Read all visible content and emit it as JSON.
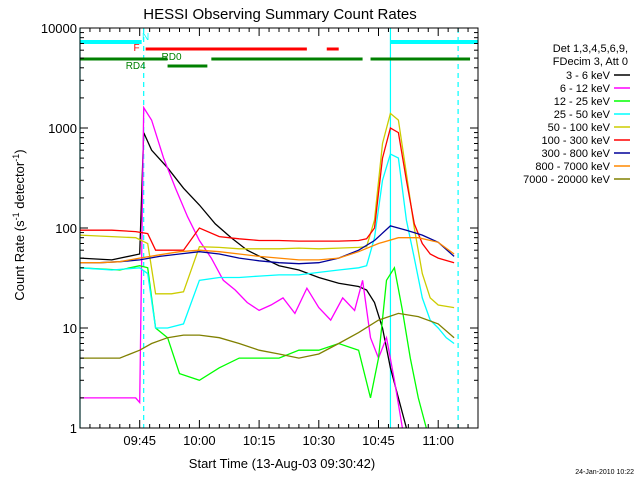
{
  "title": "HESSI Observing Summary Count Rates",
  "date_stamp": "24-Jan-2010 10:22",
  "chart_data": {
    "type": "line",
    "title": "HESSI Observing Summary Count Rates",
    "xlabel": "Start Time (13-Aug-03 09:30:42)",
    "ylabel_prefix": "Count Rate (s",
    "ylabel_sup1": "-1",
    "ylabel_mid": " detector",
    "ylabel_sup2": "-1",
    "ylabel_suffix": ")",
    "y_scale": "log",
    "ylim": [
      1,
      10000
    ],
    "xlim_minutes": [
      0,
      100
    ],
    "x_ticks": [
      {
        "t": 15,
        "label": "09:45"
      },
      {
        "t": 30,
        "label": "10:00"
      },
      {
        "t": 45,
        "label": "10:15"
      },
      {
        "t": 60,
        "label": "10:30"
      },
      {
        "t": 75,
        "label": "10:45"
      },
      {
        "t": 90,
        "label": "11:00"
      }
    ],
    "y_ticks": [
      {
        "v": 1,
        "label": "1"
      },
      {
        "v": 10,
        "label": "10"
      },
      {
        "v": 100,
        "label": "100"
      },
      {
        "v": 1000,
        "label": "1000"
      },
      {
        "v": 10000,
        "label": "10000"
      }
    ],
    "legend": {
      "header1": "Det 1,3,4,5,6,9,",
      "header2": "FDecim 3, Att 0",
      "position": "right"
    },
    "series": [
      {
        "name": "3 - 6 keV",
        "color": "#000000",
        "points": [
          [
            0,
            50
          ],
          [
            8,
            48
          ],
          [
            15,
            55
          ],
          [
            16,
            900
          ],
          [
            18,
            600
          ],
          [
            22,
            400
          ],
          [
            26,
            250
          ],
          [
            30,
            170
          ],
          [
            34,
            110
          ],
          [
            38,
            80
          ],
          [
            42,
            60
          ],
          [
            46,
            50
          ],
          [
            50,
            42
          ],
          [
            55,
            38
          ],
          [
            60,
            32
          ],
          [
            65,
            28
          ],
          [
            70,
            26
          ],
          [
            72,
            24
          ],
          [
            74,
            18
          ],
          [
            76,
            10
          ],
          [
            78,
            4
          ],
          [
            80,
            2
          ],
          [
            82,
            1
          ]
        ]
      },
      {
        "name": "6 - 12 keV",
        "color": "#ff00ff",
        "points": [
          [
            0,
            2
          ],
          [
            10,
            2
          ],
          [
            14,
            2
          ],
          [
            15,
            1.8
          ],
          [
            16,
            1600
          ],
          [
            18,
            1200
          ],
          [
            21,
            500
          ],
          [
            24,
            250
          ],
          [
            27,
            130
          ],
          [
            30,
            75
          ],
          [
            33,
            50
          ],
          [
            36,
            30
          ],
          [
            39,
            24
          ],
          [
            42,
            18
          ],
          [
            45,
            15
          ],
          [
            48,
            17
          ],
          [
            51,
            20
          ],
          [
            54,
            14
          ],
          [
            57,
            25
          ],
          [
            60,
            16
          ],
          [
            63,
            12
          ],
          [
            66,
            20
          ],
          [
            69,
            15
          ],
          [
            71,
            30
          ],
          [
            73,
            8
          ],
          [
            75,
            5
          ],
          [
            77,
            8
          ],
          [
            79,
            3
          ],
          [
            81,
            1
          ]
        ]
      },
      {
        "name": "12 - 25 keV",
        "color": "#00ff00",
        "points": [
          [
            0,
            40
          ],
          [
            10,
            38
          ],
          [
            15,
            42
          ],
          [
            17,
            40
          ],
          [
            19,
            10
          ],
          [
            22,
            8
          ],
          [
            25,
            3.5
          ],
          [
            30,
            3
          ],
          [
            35,
            4
          ],
          [
            40,
            5
          ],
          [
            45,
            5
          ],
          [
            50,
            5
          ],
          [
            55,
            6
          ],
          [
            60,
            6
          ],
          [
            65,
            7
          ],
          [
            70,
            6
          ],
          [
            73,
            2
          ],
          [
            75,
            5
          ],
          [
            77,
            30
          ],
          [
            79,
            40
          ],
          [
            81,
            15
          ],
          [
            83,
            5
          ],
          [
            85,
            2
          ],
          [
            87,
            1
          ]
        ]
      },
      {
        "name": "25 - 50 keV",
        "color": "#00ffff",
        "points": [
          [
            0,
            40
          ],
          [
            8,
            38
          ],
          [
            15,
            40
          ],
          [
            17,
            35
          ],
          [
            19,
            10
          ],
          [
            22,
            10
          ],
          [
            26,
            11
          ],
          [
            30,
            30
          ],
          [
            35,
            32
          ],
          [
            40,
            32
          ],
          [
            45,
            33
          ],
          [
            50,
            34
          ],
          [
            55,
            34
          ],
          [
            60,
            36
          ],
          [
            65,
            38
          ],
          [
            70,
            40
          ],
          [
            72,
            42
          ],
          [
            74,
            80
          ],
          [
            76,
            300
          ],
          [
            78,
            550
          ],
          [
            80,
            500
          ],
          [
            82,
            120
          ],
          [
            84,
            50
          ],
          [
            86,
            20
          ],
          [
            88,
            12
          ],
          [
            90,
            10
          ],
          [
            92,
            8
          ],
          [
            94,
            7
          ]
        ]
      },
      {
        "name": "50 - 100 keV",
        "color": "#cccc00",
        "points": [
          [
            0,
            85
          ],
          [
            8,
            82
          ],
          [
            14,
            80
          ],
          [
            17,
            70
          ],
          [
            19,
            22
          ],
          [
            23,
            22
          ],
          [
            26,
            23
          ],
          [
            30,
            65
          ],
          [
            35,
            64
          ],
          [
            40,
            62
          ],
          [
            45,
            62
          ],
          [
            50,
            62
          ],
          [
            55,
            63
          ],
          [
            60,
            62
          ],
          [
            65,
            63
          ],
          [
            70,
            64
          ],
          [
            72,
            65
          ],
          [
            74,
            120
          ],
          [
            76,
            700
          ],
          [
            78,
            1400
          ],
          [
            80,
            1200
          ],
          [
            82,
            350
          ],
          [
            84,
            100
          ],
          [
            86,
            35
          ],
          [
            88,
            20
          ],
          [
            90,
            17
          ],
          [
            94,
            16
          ]
        ]
      },
      {
        "name": "100 - 300 keV",
        "color": "#ff0000",
        "points": [
          [
            0,
            95
          ],
          [
            8,
            95
          ],
          [
            14,
            92
          ],
          [
            17,
            88
          ],
          [
            19,
            60
          ],
          [
            23,
            60
          ],
          [
            26,
            60
          ],
          [
            30,
            100
          ],
          [
            35,
            82
          ],
          [
            40,
            78
          ],
          [
            45,
            75
          ],
          [
            50,
            75
          ],
          [
            55,
            74
          ],
          [
            60,
            74
          ],
          [
            65,
            74
          ],
          [
            70,
            75
          ],
          [
            72,
            78
          ],
          [
            74,
            100
          ],
          [
            76,
            500
          ],
          [
            78,
            1000
          ],
          [
            80,
            900
          ],
          [
            82,
            300
          ],
          [
            84,
            110
          ],
          [
            86,
            70
          ],
          [
            88,
            55
          ],
          [
            90,
            50
          ],
          [
            94,
            45
          ]
        ]
      },
      {
        "name": "300 - 800 keV",
        "color": "#000099",
        "points": [
          [
            0,
            45
          ],
          [
            5,
            45
          ],
          [
            10,
            46
          ],
          [
            15,
            48
          ],
          [
            20,
            52
          ],
          [
            25,
            55
          ],
          [
            30,
            58
          ],
          [
            35,
            55
          ],
          [
            40,
            50
          ],
          [
            45,
            47
          ],
          [
            50,
            45
          ],
          [
            55,
            44
          ],
          [
            60,
            45
          ],
          [
            65,
            50
          ],
          [
            70,
            60
          ],
          [
            74,
            75
          ],
          [
            78,
            105
          ],
          [
            82,
            95
          ],
          [
            86,
            85
          ],
          [
            90,
            72
          ],
          [
            94,
            52
          ]
        ]
      },
      {
        "name": "800 - 7000 keV",
        "color": "#ff8800",
        "points": [
          [
            0,
            45
          ],
          [
            5,
            45
          ],
          [
            10,
            46
          ],
          [
            15,
            50
          ],
          [
            20,
            54
          ],
          [
            25,
            58
          ],
          [
            30,
            60
          ],
          [
            35,
            58
          ],
          [
            40,
            55
          ],
          [
            45,
            52
          ],
          [
            50,
            50
          ],
          [
            55,
            48
          ],
          [
            60,
            48
          ],
          [
            65,
            50
          ],
          [
            70,
            58
          ],
          [
            75,
            70
          ],
          [
            80,
            80
          ],
          [
            85,
            80
          ],
          [
            90,
            72
          ],
          [
            94,
            55
          ]
        ]
      },
      {
        "name": "7000 - 20000 keV",
        "color": "#808000",
        "points": [
          [
            0,
            5
          ],
          [
            5,
            5
          ],
          [
            10,
            5
          ],
          [
            15,
            6
          ],
          [
            18,
            7
          ],
          [
            22,
            8
          ],
          [
            26,
            8.5
          ],
          [
            30,
            8.5
          ],
          [
            35,
            8
          ],
          [
            40,
            7
          ],
          [
            45,
            6
          ],
          [
            50,
            5.5
          ],
          [
            55,
            5
          ],
          [
            60,
            5.5
          ],
          [
            65,
            7
          ],
          [
            70,
            9
          ],
          [
            75,
            12
          ],
          [
            80,
            14
          ],
          [
            85,
            13
          ],
          [
            90,
            11
          ],
          [
            94,
            8
          ]
        ]
      }
    ],
    "annotations": {
      "labels": [
        {
          "text": "N",
          "t": 16.5,
          "color": "#00ffff"
        },
        {
          "text": "F",
          "t": 14.2,
          "color": "#ff0000"
        },
        {
          "text": "RD0",
          "t": 23,
          "color": "#008000"
        },
        {
          "text": "RD4",
          "t": 14,
          "color": "#008000"
        }
      ],
      "night_bars": [
        [
          0,
          15.5
        ],
        [
          78,
          100
        ]
      ],
      "flare_bars": [
        [
          16.5,
          57
        ],
        [
          62,
          65
        ]
      ],
      "saa_bars": [
        [
          0,
          22
        ],
        [
          22,
          32
        ],
        [
          33,
          71
        ],
        [
          73,
          98
        ]
      ],
      "vertical_lines": [
        {
          "t": 0,
          "color": "#00ffff",
          "dashed": false
        },
        {
          "t": 16,
          "color": "#00ffff",
          "dashed": true
        },
        {
          "t": 78,
          "color": "#00ffff",
          "dashed": false
        },
        {
          "t": 95,
          "color": "#00ffff",
          "dashed": true
        }
      ]
    }
  }
}
